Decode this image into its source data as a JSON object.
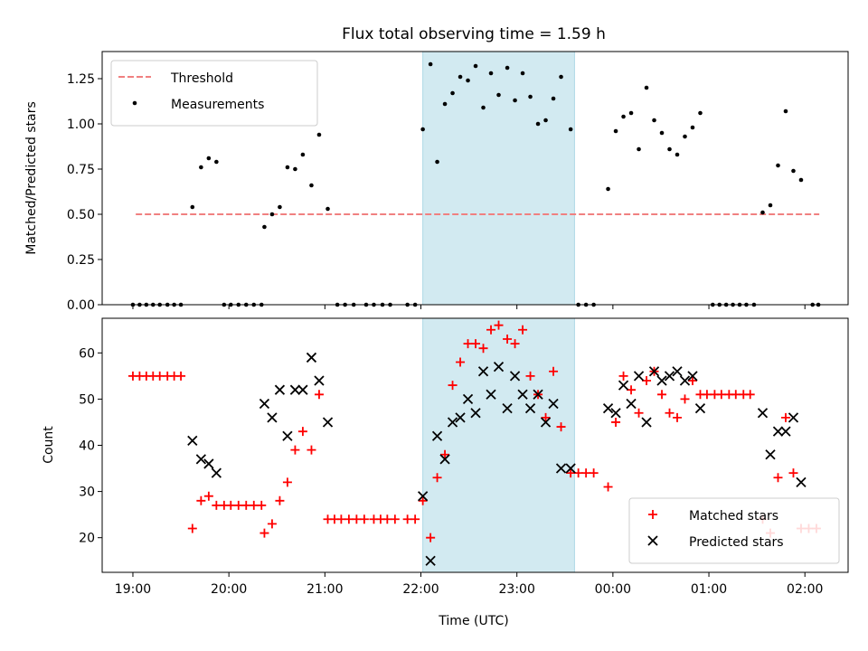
{
  "chart_data": {
    "type": "scatter",
    "title": "Flux total observing time = 1.59 h",
    "xlabel": "Time (UTC)",
    "x_tick_labels": [
      "19:00",
      "20:00",
      "21:00",
      "22:00",
      "23:00",
      "00:00",
      "01:00",
      "02:00"
    ],
    "x_tick_hours": [
      0,
      1,
      2,
      3,
      4,
      5,
      6,
      7
    ],
    "x_range_hours": [
      -0.32,
      7.45
    ],
    "highlight_span_hours": [
      3.02,
      4.6
    ],
    "highlight_color": "#add8e6",
    "top_panel": {
      "ylabel": "Matched/Predicted stars",
      "ylim": [
        0,
        1.4
      ],
      "yticks": [
        "0.00",
        "0.25",
        "0.50",
        "0.75",
        "1.00",
        "1.25"
      ],
      "legend": "top-left",
      "threshold": {
        "name": "Threshold",
        "value": 0.5,
        "x_start": 0.03,
        "x_end": 7.15,
        "color": "#f08080",
        "style": "dashed"
      },
      "series": [
        {
          "name": "Measurements",
          "color": "#000000",
          "marker": "dot",
          "points": [
            [
              0.0,
              0
            ],
            [
              0.07,
              0
            ],
            [
              0.14,
              0
            ],
            [
              0.21,
              0
            ],
            [
              0.28,
              0
            ],
            [
              0.36,
              0
            ],
            [
              0.43,
              0
            ],
            [
              0.5,
              0
            ],
            [
              0.62,
              0.54
            ],
            [
              0.71,
              0.76
            ],
            [
              0.79,
              0.81
            ],
            [
              0.87,
              0.79
            ],
            [
              0.95,
              0
            ],
            [
              1.02,
              0
            ],
            [
              1.1,
              0
            ],
            [
              1.18,
              0
            ],
            [
              1.26,
              0
            ],
            [
              1.34,
              0
            ],
            [
              1.37,
              0.43
            ],
            [
              1.45,
              0.5
            ],
            [
              1.53,
              0.54
            ],
            [
              1.61,
              0.76
            ],
            [
              1.69,
              0.75
            ],
            [
              1.77,
              0.83
            ],
            [
              1.86,
              0.66
            ],
            [
              1.94,
              0.94
            ],
            [
              2.03,
              0.53
            ],
            [
              2.13,
              0
            ],
            [
              2.21,
              0
            ],
            [
              2.3,
              0
            ],
            [
              2.43,
              0
            ],
            [
              2.51,
              0
            ],
            [
              2.6,
              0
            ],
            [
              2.68,
              0
            ],
            [
              2.86,
              0
            ],
            [
              2.94,
              0
            ],
            [
              3.02,
              0.97
            ],
            [
              3.1,
              1.33
            ],
            [
              3.17,
              0.79
            ],
            [
              3.25,
              1.11
            ],
            [
              3.33,
              1.17
            ],
            [
              3.41,
              1.26
            ],
            [
              3.49,
              1.24
            ],
            [
              3.57,
              1.32
            ],
            [
              3.65,
              1.09
            ],
            [
              3.73,
              1.28
            ],
            [
              3.81,
              1.16
            ],
            [
              3.9,
              1.31
            ],
            [
              3.98,
              1.13
            ],
            [
              4.06,
              1.28
            ],
            [
              4.14,
              1.15
            ],
            [
              4.22,
              1.0
            ],
            [
              4.3,
              1.02
            ],
            [
              4.38,
              1.14
            ],
            [
              4.46,
              1.26
            ],
            [
              4.56,
              0.97
            ],
            [
              4.64,
              0
            ],
            [
              4.72,
              0
            ],
            [
              4.8,
              0
            ],
            [
              4.95,
              0.64
            ],
            [
              5.03,
              0.96
            ],
            [
              5.11,
              1.04
            ],
            [
              5.19,
              1.06
            ],
            [
              5.27,
              0.86
            ],
            [
              5.35,
              1.2
            ],
            [
              5.43,
              1.02
            ],
            [
              5.51,
              0.95
            ],
            [
              5.59,
              0.86
            ],
            [
              5.67,
              0.83
            ],
            [
              5.75,
              0.93
            ],
            [
              5.83,
              0.98
            ],
            [
              5.91,
              1.06
            ],
            [
              6.04,
              0
            ],
            [
              6.11,
              0
            ],
            [
              6.18,
              0
            ],
            [
              6.25,
              0
            ],
            [
              6.32,
              0
            ],
            [
              6.39,
              0
            ],
            [
              6.47,
              0
            ],
            [
              6.56,
              0.51
            ],
            [
              6.64,
              0.55
            ],
            [
              6.72,
              0.77
            ],
            [
              6.8,
              1.07
            ],
            [
              6.88,
              0.74
            ],
            [
              6.96,
              0.69
            ],
            [
              7.08,
              0
            ],
            [
              7.14,
              0
            ]
          ]
        }
      ]
    },
    "bottom_panel": {
      "ylabel": "Count",
      "ylim": [
        12.5,
        67.5
      ],
      "yticks": [
        "20",
        "30",
        "40",
        "50",
        "60"
      ],
      "legend": "bottom-right",
      "series": [
        {
          "name": "Matched stars",
          "color": "#ff0000",
          "marker": "plus",
          "points": [
            [
              0.0,
              55
            ],
            [
              0.07,
              55
            ],
            [
              0.14,
              55
            ],
            [
              0.21,
              55
            ],
            [
              0.28,
              55
            ],
            [
              0.36,
              55
            ],
            [
              0.43,
              55
            ],
            [
              0.5,
              55
            ],
            [
              0.62,
              22
            ],
            [
              0.71,
              28
            ],
            [
              0.79,
              29
            ],
            [
              0.87,
              27
            ],
            [
              0.95,
              27
            ],
            [
              1.02,
              27
            ],
            [
              1.1,
              27
            ],
            [
              1.18,
              27
            ],
            [
              1.26,
              27
            ],
            [
              1.34,
              27
            ],
            [
              1.37,
              21
            ],
            [
              1.45,
              23
            ],
            [
              1.53,
              28
            ],
            [
              1.61,
              32
            ],
            [
              1.69,
              39
            ],
            [
              1.77,
              43
            ],
            [
              1.86,
              39
            ],
            [
              1.94,
              51
            ],
            [
              2.03,
              24
            ],
            [
              2.1,
              24
            ],
            [
              2.17,
              24
            ],
            [
              2.25,
              24
            ],
            [
              2.33,
              24
            ],
            [
              2.41,
              24
            ],
            [
              2.51,
              24
            ],
            [
              2.58,
              24
            ],
            [
              2.65,
              24
            ],
            [
              2.73,
              24
            ],
            [
              2.86,
              24
            ],
            [
              2.94,
              24
            ],
            [
              3.02,
              28
            ],
            [
              3.1,
              20
            ],
            [
              3.17,
              33
            ],
            [
              3.25,
              38
            ],
            [
              3.33,
              53
            ],
            [
              3.41,
              58
            ],
            [
              3.49,
              62
            ],
            [
              3.57,
              62
            ],
            [
              3.65,
              61
            ],
            [
              3.73,
              65
            ],
            [
              3.81,
              66
            ],
            [
              3.9,
              63
            ],
            [
              3.98,
              62
            ],
            [
              4.06,
              65
            ],
            [
              4.14,
              55
            ],
            [
              4.22,
              51
            ],
            [
              4.3,
              46
            ],
            [
              4.38,
              56
            ],
            [
              4.46,
              44
            ],
            [
              4.56,
              34
            ],
            [
              4.64,
              34
            ],
            [
              4.72,
              34
            ],
            [
              4.8,
              34
            ],
            [
              4.95,
              31
            ],
            [
              5.03,
              45
            ],
            [
              5.11,
              55
            ],
            [
              5.19,
              52
            ],
            [
              5.27,
              47
            ],
            [
              5.35,
              54
            ],
            [
              5.43,
              56
            ],
            [
              5.51,
              51
            ],
            [
              5.59,
              47
            ],
            [
              5.67,
              46
            ],
            [
              5.75,
              50
            ],
            [
              5.83,
              54
            ],
            [
              5.91,
              51
            ],
            [
              5.98,
              51
            ],
            [
              6.06,
              51
            ],
            [
              6.13,
              51
            ],
            [
              6.21,
              51
            ],
            [
              6.28,
              51
            ],
            [
              6.36,
              51
            ],
            [
              6.43,
              51
            ],
            [
              6.56,
              24
            ],
            [
              6.64,
              21
            ],
            [
              6.72,
              33
            ],
            [
              6.8,
              46
            ],
            [
              6.88,
              34
            ],
            [
              6.96,
              22
            ],
            [
              7.04,
              22
            ],
            [
              7.12,
              22
            ]
          ]
        },
        {
          "name": "Predicted stars",
          "color": "#000000",
          "marker": "x",
          "points": [
            [
              0.62,
              41
            ],
            [
              0.71,
              37
            ],
            [
              0.79,
              36
            ],
            [
              0.87,
              34
            ],
            [
              1.37,
              49
            ],
            [
              1.45,
              46
            ],
            [
              1.53,
              52
            ],
            [
              1.61,
              42
            ],
            [
              1.69,
              52
            ],
            [
              1.77,
              52
            ],
            [
              1.86,
              59
            ],
            [
              1.94,
              54
            ],
            [
              2.03,
              45
            ],
            [
              3.02,
              29
            ],
            [
              3.1,
              15
            ],
            [
              3.17,
              42
            ],
            [
              3.25,
              37
            ],
            [
              3.33,
              45
            ],
            [
              3.41,
              46
            ],
            [
              3.49,
              50
            ],
            [
              3.57,
              47
            ],
            [
              3.65,
              56
            ],
            [
              3.73,
              51
            ],
            [
              3.81,
              57
            ],
            [
              3.9,
              48
            ],
            [
              3.98,
              55
            ],
            [
              4.06,
              51
            ],
            [
              4.14,
              48
            ],
            [
              4.22,
              51
            ],
            [
              4.3,
              45
            ],
            [
              4.38,
              49
            ],
            [
              4.46,
              35
            ],
            [
              4.56,
              35
            ],
            [
              4.95,
              48
            ],
            [
              5.03,
              47
            ],
            [
              5.11,
              53
            ],
            [
              5.19,
              49
            ],
            [
              5.27,
              55
            ],
            [
              5.35,
              45
            ],
            [
              5.43,
              56
            ],
            [
              5.51,
              54
            ],
            [
              5.59,
              55
            ],
            [
              5.67,
              56
            ],
            [
              5.75,
              54
            ],
            [
              5.83,
              55
            ],
            [
              5.91,
              48
            ],
            [
              6.56,
              47
            ],
            [
              6.64,
              38
            ],
            [
              6.72,
              43
            ],
            [
              6.8,
              43
            ],
            [
              6.88,
              46
            ],
            [
              6.96,
              32
            ]
          ]
        }
      ]
    }
  }
}
